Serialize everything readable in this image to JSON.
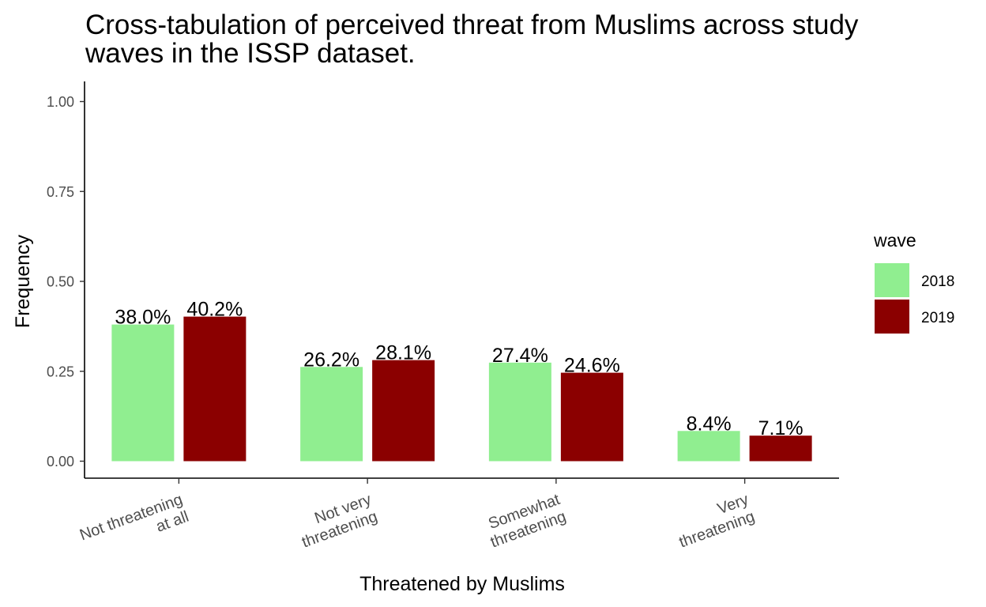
{
  "chart_data": {
    "type": "bar",
    "title_lines": [
      "Cross-tabulation of perceived threat from Muslims across study",
      "waves in the ISSP dataset."
    ],
    "xlabel": "Threatened by Muslims",
    "ylabel": "Frequency",
    "categories": [
      [
        "Not threatening",
        "at all"
      ],
      [
        "Not very",
        "threatening"
      ],
      [
        "Somewhat",
        "threatening"
      ],
      [
        "Very",
        "threatening"
      ]
    ],
    "series": [
      {
        "name": "2018",
        "color": "#90EE90",
        "values": [
          0.38,
          0.262,
          0.274,
          0.084
        ],
        "labels": [
          "38.0%",
          "26.2%",
          "27.4%",
          "8.4%"
        ]
      },
      {
        "name": "2019",
        "color": "#8B0000",
        "values": [
          0.402,
          0.281,
          0.246,
          0.071
        ],
        "labels": [
          "40.2%",
          "28.1%",
          "24.6%",
          "7.1%"
        ]
      }
    ],
    "ylim": [
      0,
      1
    ],
    "yticks": [
      "0.00",
      "0.25",
      "0.50",
      "0.75",
      "1.00"
    ],
    "legend_title": "wave",
    "legend_position": "right",
    "grid": false
  }
}
